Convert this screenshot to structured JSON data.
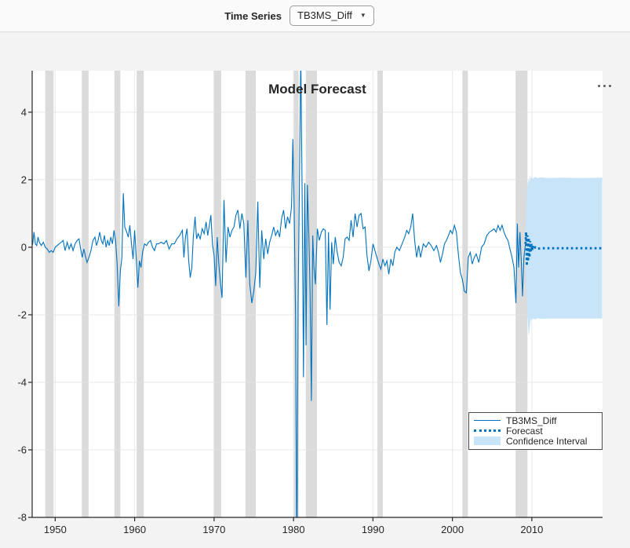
{
  "toolbar": {
    "time_series_label": "Time Series",
    "time_series_value": "TB3MS_Diff"
  },
  "panel": {
    "title": "Model Forecast",
    "menu_icon": "ellipsis"
  },
  "legend": {
    "items": [
      {
        "label": "TB3MS_Diff",
        "style": "solid-line"
      },
      {
        "label": "Forecast",
        "style": "dotted-line"
      },
      {
        "label": "Confidence Interval",
        "style": "patch"
      }
    ]
  },
  "chart_data": {
    "type": "line",
    "title": "Model Forecast",
    "xlabel": "",
    "ylabel": "",
    "xlim": [
      1947.1,
      2018.9
    ],
    "ylim": [
      -8,
      5.23
    ],
    "xticks": [
      1950,
      1960,
      1970,
      1980,
      1990,
      2000,
      2010
    ],
    "yticks": [
      -8,
      -6,
      -4,
      -2,
      0,
      2,
      4
    ],
    "grid": true,
    "legend_position": "inside-right-lower",
    "colors": {
      "series": "#0072BD",
      "forecast": "#0072BD",
      "ci_fill": "#C7E4F8",
      "recession_band": "#DBDBDB",
      "grid": "#E2E2E2",
      "axis": "#262626",
      "plot_bg": "#FFFFFF",
      "figure_bg": "#F3F3F3"
    },
    "recession_bands": [
      [
        1948.75,
        1949.8
      ],
      [
        1953.35,
        1954.2
      ],
      [
        1957.45,
        1958.2
      ],
      [
        1960.25,
        1961.15
      ],
      [
        1969.95,
        1970.9
      ],
      [
        1973.95,
        1975.25
      ],
      [
        1980.05,
        1980.65
      ],
      [
        1981.55,
        1982.95
      ],
      [
        1990.55,
        1991.25
      ],
      [
        2001.25,
        2001.95
      ],
      [
        2007.95,
        2009.45
      ]
    ],
    "series": {
      "name": "TB3MS_Diff",
      "points": [
        [
          1947.0,
          0.0
        ],
        [
          1947.17,
          0.1
        ],
        [
          1947.33,
          0.45
        ],
        [
          1947.5,
          0.1
        ],
        [
          1947.67,
          0.05
        ],
        [
          1947.83,
          0.3
        ],
        [
          1948.0,
          0.15
        ],
        [
          1948.25,
          0.05
        ],
        [
          1948.5,
          0.15
        ],
        [
          1948.75,
          0.0
        ],
        [
          1949.0,
          -0.05
        ],
        [
          1949.25,
          -0.15
        ],
        [
          1949.5,
          -0.1
        ],
        [
          1949.75,
          -0.15
        ],
        [
          1950.0,
          0.0
        ],
        [
          1950.25,
          0.05
        ],
        [
          1950.5,
          0.1
        ],
        [
          1950.75,
          0.15
        ],
        [
          1951.0,
          0.2
        ],
        [
          1951.25,
          -0.1
        ],
        [
          1951.5,
          0.15
        ],
        [
          1951.75,
          -0.05
        ],
        [
          1952.0,
          0.1
        ],
        [
          1952.25,
          -0.1
        ],
        [
          1952.5,
          0.1
        ],
        [
          1952.75,
          0.2
        ],
        [
          1953.0,
          0.25
        ],
        [
          1953.2,
          -0.05
        ],
        [
          1953.4,
          -0.3
        ],
        [
          1953.6,
          -0.05
        ],
        [
          1953.8,
          -0.25
        ],
        [
          1954.0,
          -0.45
        ],
        [
          1954.25,
          -0.3
        ],
        [
          1954.5,
          -0.1
        ],
        [
          1954.75,
          0.2
        ],
        [
          1955.0,
          0.3
        ],
        [
          1955.2,
          0.05
        ],
        [
          1955.4,
          0.2
        ],
        [
          1955.6,
          0.45
        ],
        [
          1955.8,
          0.2
        ],
        [
          1956.0,
          0.1
        ],
        [
          1956.2,
          0.35
        ],
        [
          1956.4,
          0.0
        ],
        [
          1956.6,
          0.2
        ],
        [
          1956.8,
          0.05
        ],
        [
          1957.0,
          0.3
        ],
        [
          1957.2,
          0.1
        ],
        [
          1957.4,
          0.5
        ],
        [
          1957.6,
          0.2
        ],
        [
          1957.8,
          -0.5
        ],
        [
          1958.0,
          -1.75
        ],
        [
          1958.2,
          -0.7
        ],
        [
          1958.4,
          -0.3
        ],
        [
          1958.58,
          1.6
        ],
        [
          1958.75,
          0.6
        ],
        [
          1959.0,
          0.45
        ],
        [
          1959.2,
          0.3
        ],
        [
          1959.4,
          0.65
        ],
        [
          1959.6,
          0.1
        ],
        [
          1959.8,
          -0.35
        ],
        [
          1960.0,
          0.5
        ],
        [
          1960.2,
          -0.3
        ],
        [
          1960.4,
          -1.2
        ],
        [
          1960.6,
          -0.4
        ],
        [
          1960.8,
          -0.6
        ],
        [
          1961.0,
          -0.15
        ],
        [
          1961.25,
          0.1
        ],
        [
          1961.5,
          0.05
        ],
        [
          1961.75,
          0.15
        ],
        [
          1962.0,
          0.2
        ],
        [
          1962.25,
          0.0
        ],
        [
          1962.5,
          -0.1
        ],
        [
          1962.75,
          0.1
        ],
        [
          1963.0,
          0.1
        ],
        [
          1963.33,
          0.15
        ],
        [
          1963.67,
          0.1
        ],
        [
          1964.0,
          0.2
        ],
        [
          1964.33,
          -0.05
        ],
        [
          1964.67,
          0.1
        ],
        [
          1965.0,
          0.1
        ],
        [
          1965.33,
          0.25
        ],
        [
          1965.67,
          0.35
        ],
        [
          1966.0,
          0.5
        ],
        [
          1966.2,
          -0.3
        ],
        [
          1966.4,
          0.3
        ],
        [
          1966.6,
          0.55
        ],
        [
          1966.8,
          -0.4
        ],
        [
          1967.0,
          -0.9
        ],
        [
          1967.2,
          -0.6
        ],
        [
          1967.4,
          0.35
        ],
        [
          1967.6,
          0.9
        ],
        [
          1967.8,
          0.25
        ],
        [
          1968.0,
          0.4
        ],
        [
          1968.25,
          0.25
        ],
        [
          1968.5,
          0.55
        ],
        [
          1968.75,
          0.4
        ],
        [
          1969.0,
          0.75
        ],
        [
          1969.2,
          0.35
        ],
        [
          1969.4,
          0.65
        ],
        [
          1969.6,
          0.95
        ],
        [
          1969.8,
          0.1
        ],
        [
          1970.0,
          -0.25
        ],
        [
          1970.2,
          -1.15
        ],
        [
          1970.4,
          0.3
        ],
        [
          1970.6,
          -0.5
        ],
        [
          1970.8,
          -1.05
        ],
        [
          1971.0,
          -1.5
        ],
        [
          1971.25,
          1.4
        ],
        [
          1971.5,
          -0.45
        ],
        [
          1971.75,
          0.6
        ],
        [
          1972.0,
          0.3
        ],
        [
          1972.25,
          0.5
        ],
        [
          1972.5,
          0.6
        ],
        [
          1972.75,
          0.95
        ],
        [
          1973.0,
          1.1
        ],
        [
          1973.25,
          0.55
        ],
        [
          1973.5,
          1.0
        ],
        [
          1973.75,
          0.7
        ],
        [
          1974.0,
          -0.9
        ],
        [
          1974.25,
          0.8
        ],
        [
          1974.5,
          -1.1
        ],
        [
          1974.75,
          -1.65
        ],
        [
          1975.0,
          -1.3
        ],
        [
          1975.25,
          -0.75
        ],
        [
          1975.5,
          1.35
        ],
        [
          1975.75,
          -1.2
        ],
        [
          1976.0,
          0.5
        ],
        [
          1976.25,
          -0.35
        ],
        [
          1976.5,
          0.25
        ],
        [
          1976.75,
          -0.2
        ],
        [
          1977.0,
          0.15
        ],
        [
          1977.25,
          0.35
        ],
        [
          1977.5,
          0.6
        ],
        [
          1977.75,
          0.35
        ],
        [
          1978.0,
          0.5
        ],
        [
          1978.25,
          0.3
        ],
        [
          1978.5,
          0.85
        ],
        [
          1978.75,
          1.1
        ],
        [
          1979.0,
          0.55
        ],
        [
          1979.25,
          0.9
        ],
        [
          1979.5,
          0.7
        ],
        [
          1979.75,
          1.2
        ],
        [
          1979.92,
          3.2
        ],
        [
          1980.08,
          1.2
        ],
        [
          1980.25,
          -2.0
        ],
        [
          1980.42,
          -9.6
        ],
        [
          1980.58,
          -1.6
        ],
        [
          1980.75,
          2.0
        ],
        [
          1980.92,
          5.7
        ],
        [
          1981.08,
          1.6
        ],
        [
          1981.25,
          -3.85
        ],
        [
          1981.42,
          1.9
        ],
        [
          1981.58,
          -2.9
        ],
        [
          1981.75,
          1.85
        ],
        [
          1981.92,
          0.4
        ],
        [
          1982.08,
          -1.3
        ],
        [
          1982.25,
          -4.55
        ],
        [
          1982.42,
          0.35
        ],
        [
          1982.58,
          -0.6
        ],
        [
          1982.75,
          -1.1
        ],
        [
          1983.0,
          0.55
        ],
        [
          1983.25,
          0.2
        ],
        [
          1983.5,
          0.45
        ],
        [
          1983.75,
          0.55
        ],
        [
          1984.0,
          0.5
        ],
        [
          1984.2,
          -2.3
        ],
        [
          1984.4,
          0.45
        ],
        [
          1984.6,
          -1.85
        ],
        [
          1984.8,
          0.15
        ],
        [
          1985.0,
          -0.5
        ],
        [
          1985.25,
          0.3
        ],
        [
          1985.5,
          -0.15
        ],
        [
          1985.75,
          -0.45
        ],
        [
          1986.0,
          -0.55
        ],
        [
          1986.25,
          -0.3
        ],
        [
          1986.5,
          0.25
        ],
        [
          1986.75,
          0.3
        ],
        [
          1987.0,
          0.2
        ],
        [
          1987.25,
          0.8
        ],
        [
          1987.5,
          0.3
        ],
        [
          1987.75,
          1.0
        ],
        [
          1988.0,
          0.6
        ],
        [
          1988.25,
          0.95
        ],
        [
          1988.5,
          1.0
        ],
        [
          1988.75,
          0.55
        ],
        [
          1989.0,
          0.6
        ],
        [
          1989.25,
          -0.25
        ],
        [
          1989.5,
          -0.7
        ],
        [
          1989.75,
          -0.4
        ],
        [
          1990.0,
          0.1
        ],
        [
          1990.25,
          -0.1
        ],
        [
          1990.5,
          -0.3
        ],
        [
          1990.75,
          -0.5
        ],
        [
          1991.0,
          -0.65
        ],
        [
          1991.25,
          -0.35
        ],
        [
          1991.5,
          -0.55
        ],
        [
          1991.75,
          -0.4
        ],
        [
          1992.0,
          -0.8
        ],
        [
          1992.25,
          -0.35
        ],
        [
          1992.5,
          -0.55
        ],
        [
          1992.75,
          -0.15
        ],
        [
          1993.0,
          0.0
        ],
        [
          1993.33,
          -0.1
        ],
        [
          1993.67,
          0.1
        ],
        [
          1994.0,
          0.3
        ],
        [
          1994.25,
          0.5
        ],
        [
          1994.5,
          0.4
        ],
        [
          1994.75,
          0.6
        ],
        [
          1995.0,
          1.0
        ],
        [
          1995.25,
          0.2
        ],
        [
          1995.5,
          -0.3
        ],
        [
          1995.75,
          0.05
        ],
        [
          1996.0,
          -0.3
        ],
        [
          1996.33,
          0.1
        ],
        [
          1996.67,
          0.0
        ],
        [
          1997.0,
          0.15
        ],
        [
          1997.33,
          0.05
        ],
        [
          1997.67,
          -0.1
        ],
        [
          1998.0,
          0.05
        ],
        [
          1998.25,
          -0.15
        ],
        [
          1998.5,
          -0.45
        ],
        [
          1998.75,
          -0.2
        ],
        [
          1999.0,
          0.1
        ],
        [
          1999.25,
          0.2
        ],
        [
          1999.5,
          0.35
        ],
        [
          1999.75,
          0.5
        ],
        [
          2000.0,
          0.4
        ],
        [
          2000.25,
          0.65
        ],
        [
          2000.5,
          0.45
        ],
        [
          2000.75,
          -0.2
        ],
        [
          2001.0,
          -0.75
        ],
        [
          2001.25,
          -0.95
        ],
        [
          2001.5,
          -1.3
        ],
        [
          2001.75,
          -1.35
        ],
        [
          2002.0,
          -0.3
        ],
        [
          2002.25,
          -0.15
        ],
        [
          2002.5,
          -0.5
        ],
        [
          2002.75,
          -0.3
        ],
        [
          2003.0,
          -0.2
        ],
        [
          2003.33,
          -0.45
        ],
        [
          2003.67,
          0.0
        ],
        [
          2004.0,
          0.1
        ],
        [
          2004.33,
          0.35
        ],
        [
          2004.67,
          0.45
        ],
        [
          2005.0,
          0.5
        ],
        [
          2005.25,
          0.55
        ],
        [
          2005.5,
          0.45
        ],
        [
          2005.75,
          0.65
        ],
        [
          2006.0,
          0.5
        ],
        [
          2006.25,
          0.65
        ],
        [
          2006.5,
          0.45
        ],
        [
          2006.75,
          0.3
        ],
        [
          2007.0,
          0.2
        ],
        [
          2007.25,
          -0.05
        ],
        [
          2007.5,
          -0.3
        ],
        [
          2007.75,
          -0.6
        ],
        [
          2008.0,
          -1.65
        ],
        [
          2008.17,
          0.7
        ],
        [
          2008.33,
          -0.6
        ],
        [
          2008.5,
          0.45
        ],
        [
          2008.67,
          -0.4
        ],
        [
          2008.83,
          -1.45
        ],
        [
          2009.0,
          -0.3
        ],
        [
          2009.2,
          0.1
        ]
      ]
    },
    "forecast": {
      "name": "Forecast",
      "points": [
        [
          2009.2,
          0.1
        ],
        [
          2009.28,
          0.45
        ],
        [
          2009.37,
          -0.55
        ],
        [
          2009.45,
          0.35
        ],
        [
          2009.53,
          -0.42
        ],
        [
          2009.62,
          0.28
        ],
        [
          2009.7,
          -0.3
        ],
        [
          2009.78,
          0.18
        ],
        [
          2009.87,
          -0.15
        ],
        [
          2009.95,
          0.1
        ],
        [
          2010.03,
          -0.1
        ],
        [
          2010.12,
          0.05
        ],
        [
          2010.2,
          -0.06
        ],
        [
          2010.45,
          0.0
        ],
        [
          2010.7,
          -0.04
        ],
        [
          2011.2,
          -0.03
        ],
        [
          2013.0,
          -0.03
        ],
        [
          2016.0,
          -0.03
        ],
        [
          2018.85,
          -0.03
        ]
      ]
    },
    "confidence_interval": {
      "name": "Confidence Interval",
      "points": [
        [
          2009.2,
          0.35,
          -0.35
        ],
        [
          2009.28,
          1.15,
          -1.0
        ],
        [
          2009.37,
          1.6,
          -1.55
        ],
        [
          2009.45,
          1.85,
          -1.95
        ],
        [
          2009.53,
          1.95,
          -2.35
        ],
        [
          2009.62,
          2.02,
          -2.62
        ],
        [
          2009.7,
          1.92,
          -2.5
        ],
        [
          2009.78,
          2.12,
          -2.25
        ],
        [
          2009.87,
          2.02,
          -2.12
        ],
        [
          2009.95,
          2.1,
          -2.18
        ],
        [
          2010.12,
          2.03,
          -2.1
        ],
        [
          2010.37,
          2.08,
          -2.14
        ],
        [
          2010.7,
          2.05,
          -2.1
        ],
        [
          2011.2,
          2.07,
          -2.12
        ],
        [
          2012.0,
          2.05,
          -2.11
        ],
        [
          2014.0,
          2.06,
          -2.11
        ],
        [
          2016.0,
          2.05,
          -2.11
        ],
        [
          2018.85,
          2.06,
          -2.11
        ]
      ]
    }
  }
}
